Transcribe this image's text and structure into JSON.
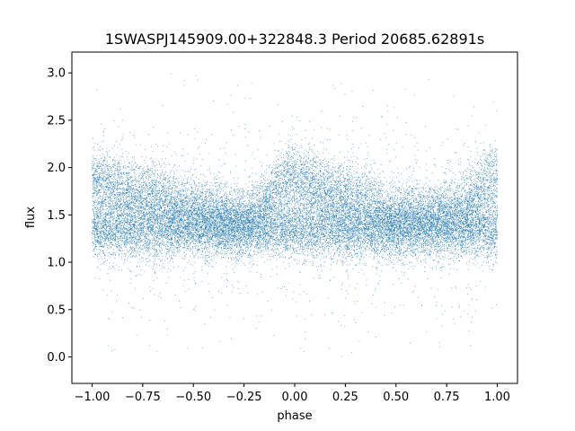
{
  "chart_data": {
    "type": "scatter",
    "title": "1SWASPJ145909.00+322848.3 Period 20685.62891s",
    "xlabel": "phase",
    "ylabel": "flux",
    "xlim": [
      -1.1,
      1.1
    ],
    "ylim": [
      -0.28,
      3.22
    ],
    "xticks": [
      -1.0,
      -0.75,
      -0.5,
      -0.25,
      0.0,
      0.25,
      0.5,
      0.75,
      1.0
    ],
    "xtick_labels": [
      "−1.00",
      "−0.75",
      "−0.50",
      "−0.25",
      "0.00",
      "0.25",
      "0.50",
      "0.75",
      "1.00"
    ],
    "yticks": [
      0.0,
      0.5,
      1.0,
      1.5,
      2.0,
      2.5,
      3.0
    ],
    "ytick_labels": [
      "0.0",
      "0.5",
      "1.0",
      "1.5",
      "2.0",
      "2.5",
      "3.0"
    ],
    "grid": false,
    "marker_color": "#1f77b4",
    "series": [
      {
        "phase_range": [
          -1.0,
          1.0
        ],
        "points_approx": 24000,
        "lower_band_flux": 1.35,
        "upper_band_flux": [
          {
            "phase": -1.0,
            "flux": 1.85
          },
          {
            "phase": -0.75,
            "flux": 1.72
          },
          {
            "phase": -0.5,
            "flux": 1.55
          },
          {
            "phase": -0.25,
            "flux": 1.45
          },
          {
            "phase": 0.0,
            "flux": 1.88
          },
          {
            "phase": 0.25,
            "flux": 1.7
          },
          {
            "phase": 0.5,
            "flux": 1.48
          },
          {
            "phase": 0.75,
            "flux": 1.52
          },
          {
            "phase": 1.0,
            "flux": 1.85
          }
        ],
        "scatter_range": [
          0.0,
          3.0
        ]
      }
    ]
  }
}
